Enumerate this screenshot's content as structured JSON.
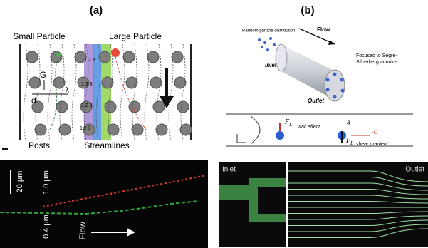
{
  "panel_a": {
    "label": "(a)",
    "small_particle": "Small Particle",
    "large_particle": "Large Particle",
    "gap": "G",
    "shift": "λ",
    "diameter": "d",
    "lanes": "1 2 3",
    "posts": "Posts",
    "streamlines": "Streamlines",
    "scale_bar": "20 μm",
    "particle_large_size": "1.0 μm",
    "particle_small_size": "0.4 μm",
    "flow": "Flow"
  },
  "panel_b": {
    "label": "(b)",
    "random": "Random particle distribution",
    "flow": "Flow",
    "inlet": "Inlet",
    "outlet": "Outlet",
    "focused": "Focused to Segre-Silberberg annulus",
    "force": "F",
    "force_sub": "L",
    "wall_effect": "wall effect",
    "shear_gradient": "shear gradient",
    "radius": "a",
    "velocity": "-U",
    "image_inlet": "Inlet",
    "image_outlet": "Outlet"
  }
}
